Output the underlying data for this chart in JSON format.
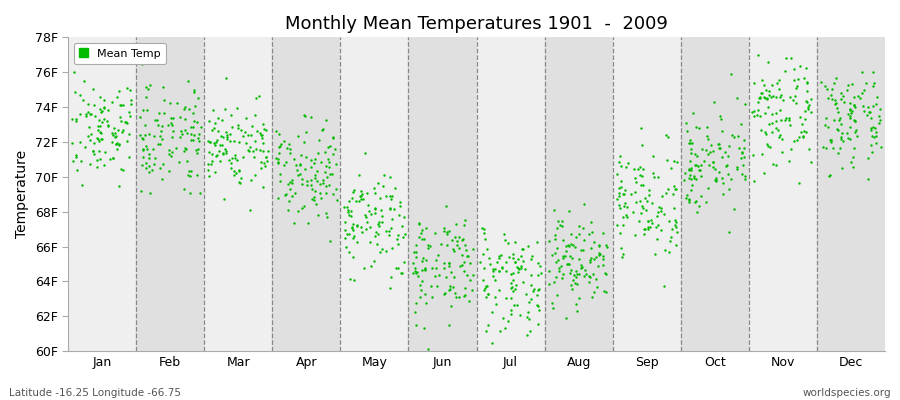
{
  "title": "Monthly Mean Temperatures 1901  -  2009",
  "ylabel": "Temperature",
  "xlabel_labels": [
    "Jan",
    "Feb",
    "Mar",
    "Apr",
    "May",
    "Jun",
    "Jul",
    "Aug",
    "Sep",
    "Oct",
    "Nov",
    "Dec"
  ],
  "ytick_labels": [
    "60F",
    "62F",
    "64F",
    "66F",
    "68F",
    "70F",
    "72F",
    "74F",
    "76F",
    "78F"
  ],
  "ytick_values": [
    60,
    62,
    64,
    66,
    68,
    70,
    72,
    74,
    76,
    78
  ],
  "ylim": [
    60,
    78
  ],
  "dot_color": "#00BB00",
  "dot_size": 3,
  "bg_color_odd": "#EFEFEF",
  "bg_color_even": "#E0E0E0",
  "background": "#FFFFFF",
  "footer_left": "Latitude -16.25 Longitude -66.75",
  "footer_right": "worldspecies.org",
  "legend_label": "Mean Temp",
  "num_years": 109,
  "monthly_means": [
    72.8,
    72.5,
    71.8,
    70.5,
    67.2,
    65.0,
    64.2,
    65.2,
    68.5,
    71.0,
    73.5,
    73.2
  ],
  "monthly_stds": [
    1.4,
    1.5,
    1.3,
    1.4,
    1.6,
    1.5,
    1.5,
    1.4,
    1.5,
    1.4,
    1.5,
    1.3
  ],
  "random_seed": 7
}
